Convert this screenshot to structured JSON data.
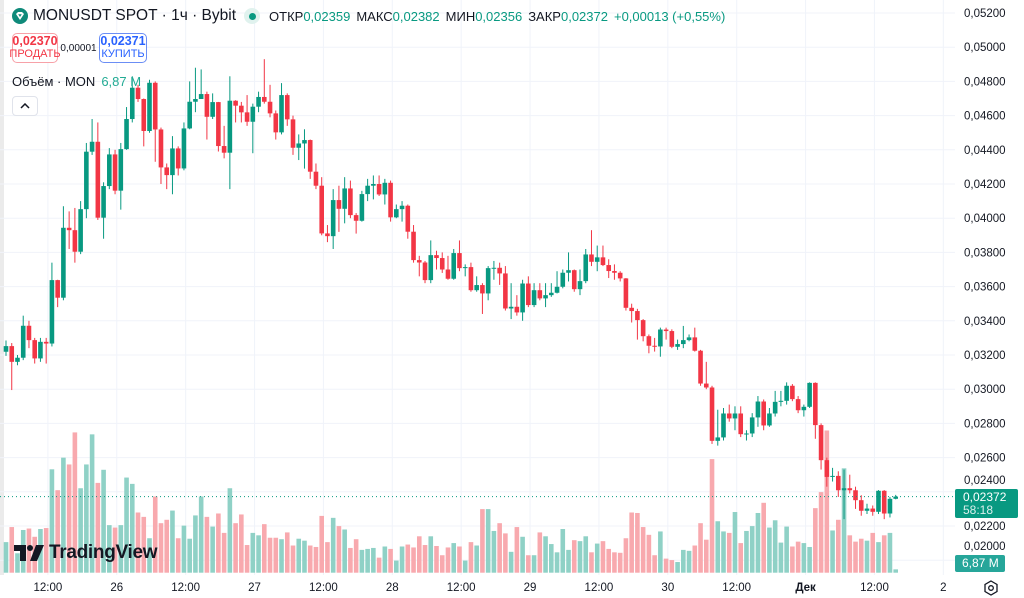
{
  "header": {
    "symbol_title": "MONUSDT SPOT · 1ч · Bybit",
    "open_label": "ОТКР",
    "open": "0,02359",
    "high_label": "МАКС",
    "high": "0,02382",
    "low_label": "МИН",
    "low": "0,02356",
    "close_label": "ЗАКР",
    "close": "0,02372",
    "change": "+0,00013 (+0,55%)"
  },
  "trade": {
    "sell_price": "0,02370",
    "sell_label": "ПРОДАТЬ",
    "spread": "0,00001",
    "buy_price": "0,02371",
    "buy_label": "КУПИТЬ"
  },
  "volume_legend": {
    "label": "Объём · MON",
    "value": "6,87 M"
  },
  "branding": "TradingView",
  "price_tag": {
    "price": "0,02372",
    "countdown": "58:18"
  },
  "volume_tag": "6,87 M",
  "colors": {
    "up": "#089981",
    "down": "#f23645",
    "up_volume": "#8fd1c6",
    "down_volume": "#f8a9ae",
    "grid": "#f0f3fa"
  },
  "icons": {
    "logo": "bybit-diamond-icon",
    "collapse": "chevron-up-icon",
    "settings": "gear-icon"
  },
  "chart_data": {
    "type": "candlestick",
    "title": "MONUSDT SPOT · 1ч · Bybit",
    "grid": true,
    "ylim": [
      0.02,
      0.052
    ],
    "y_ticks": [
      "0,05200",
      "0,05000",
      "0,04800",
      "0,04600",
      "0,04400",
      "0,04200",
      "0,04000",
      "0,03800",
      "0,03600",
      "0,03400",
      "0,03200",
      "0,03000",
      "0,02800",
      "0,02600",
      "0,02400",
      "0,02200",
      "0,02000"
    ],
    "x_ticks": [
      "12:00",
      "26",
      "12:00",
      "27",
      "12:00",
      "28",
      "12:00",
      "29",
      "12:00",
      "30",
      "12:00",
      "Дек",
      "12:00",
      "2"
    ],
    "first_open": 0.03219,
    "close": [
      0.03252,
      0.0316,
      0.03184,
      0.03371,
      0.03287,
      0.0318,
      0.03277,
      0.03267,
      0.03638,
      0.03535,
      0.03944,
      0.0393,
      0.03804,
      0.04053,
      0.04389,
      0.04447,
      0.04003,
      0.04188,
      0.04373,
      0.04161,
      0.04404,
      0.0458,
      0.04763,
      0.04697,
      0.0451,
      0.04792,
      0.04519,
      0.04297,
      0.04252,
      0.04408,
      0.04291,
      0.04525,
      0.04681,
      0.04697,
      0.04726,
      0.04593,
      0.04679,
      0.04422,
      0.04383,
      0.04687,
      0.04658,
      0.04619,
      0.04564,
      0.04652,
      0.04709,
      0.04681,
      0.04613,
      0.04502,
      0.0472,
      0.04578,
      0.04412,
      0.04437,
      0.04457,
      0.04272,
      0.0419,
      0.03911,
      0.03895,
      0.04106,
      0.04055,
      0.04174,
      0.04018,
      0.03985,
      0.04141,
      0.0419,
      0.042,
      0.04139,
      0.04207,
      0.04005,
      0.04053,
      0.04073,
      0.03921,
      0.03755,
      0.03741,
      0.03638,
      0.03784,
      0.03767,
      0.037,
      0.03646,
      0.03796,
      0.03708,
      0.03714,
      0.03579,
      0.03609,
      0.0356,
      0.03708,
      0.0371,
      0.03677,
      0.03472,
      0.03482,
      0.03449,
      0.03618,
      0.03492,
      0.03579,
      0.03531,
      0.0355,
      0.03564,
      0.03599,
      0.03681,
      0.03696,
      0.03585,
      0.03632,
      0.03788,
      0.03745,
      0.03771,
      0.03726,
      0.03691,
      0.03681,
      0.03648,
      0.03476,
      0.03457,
      0.03404,
      0.0331,
      0.03254,
      0.0325,
      0.03349,
      0.0334,
      0.03248,
      0.03264,
      0.03287,
      0.03303,
      0.03225,
      0.03033,
      0.0301,
      0.02698,
      0.02718,
      0.02858,
      0.02829,
      0.02858,
      0.02737,
      0.02741,
      0.02835,
      0.02928,
      0.02788,
      0.02858,
      0.02926,
      0.02932,
      0.0302,
      0.02942,
      0.02877,
      0.02897,
      0.03037,
      0.0279,
      0.02585,
      0.02487,
      0.02493,
      0.02409,
      0.02421,
      0.02409,
      0.02351,
      0.02289,
      0.02302,
      0.02283,
      0.02406,
      0.02273,
      0.02359,
      0.02372
    ],
    "high": [
      0.03285,
      0.0327,
      0.032,
      0.0343,
      0.034,
      0.033,
      0.033,
      0.033,
      0.0374,
      0.0364,
      0.0407,
      0.0404,
      0.0406,
      0.041,
      0.0444,
      0.0458,
      0.0456,
      0.0421,
      0.0441,
      0.044,
      0.0444,
      0.0465,
      0.0483,
      0.0478,
      0.047,
      0.0481,
      0.048,
      0.0453,
      0.0432,
      0.0448,
      0.0442,
      0.0456,
      0.048,
      0.0488,
      0.0487,
      0.0474,
      0.0473,
      0.0468,
      0.0454,
      0.0483,
      0.0469,
      0.0468,
      0.0472,
      0.0467,
      0.0474,
      0.0493,
      0.0478,
      0.0463,
      0.0479,
      0.0473,
      0.046,
      0.0449,
      0.0452,
      0.0446,
      0.0432,
      0.0424,
      0.0396,
      0.0417,
      0.0419,
      0.0424,
      0.0422,
      0.0403,
      0.0416,
      0.0423,
      0.0425,
      0.0425,
      0.0423,
      0.0422,
      0.0408,
      0.041,
      0.0408,
      0.0396,
      0.0378,
      0.0375,
      0.0387,
      0.0381,
      0.038,
      0.0378,
      0.0382,
      0.0387,
      0.0373,
      0.0374,
      0.0366,
      0.0362,
      0.0372,
      0.0375,
      0.0374,
      0.0372,
      0.0362,
      0.0355,
      0.0364,
      0.0366,
      0.0362,
      0.0362,
      0.0362,
      0.0362,
      0.0369,
      0.037,
      0.038,
      0.037,
      0.037,
      0.0382,
      0.0393,
      0.0384,
      0.0384,
      0.0376,
      0.0373,
      0.0369,
      0.0365,
      0.035,
      0.0347,
      0.0341,
      0.0332,
      0.033,
      0.0336,
      0.0336,
      0.0335,
      0.0329,
      0.0337,
      0.0332,
      0.0336,
      0.0323,
      0.0316,
      0.0302,
      0.0288,
      0.0289,
      0.0291,
      0.029,
      0.029,
      0.0276,
      0.0286,
      0.0296,
      0.0294,
      0.0289,
      0.0299,
      0.0299,
      0.0304,
      0.0303,
      0.0296,
      0.0291,
      0.0304,
      0.0304,
      0.028,
      0.026,
      0.0254,
      0.0252,
      0.0253,
      0.025,
      0.0243,
      0.0238,
      0.0233,
      0.0232,
      0.0241,
      0.0241,
      0.0237,
      0.02382
    ],
    "low": [
      0.03195,
      0.02995,
      0.0314,
      0.0317,
      0.0324,
      0.0315,
      0.0316,
      0.0315,
      0.0325,
      0.0348,
      0.0352,
      0.0382,
      0.0374,
      0.0379,
      0.04,
      0.0437,
      0.0399,
      0.0388,
      0.0417,
      0.0414,
      0.0405,
      0.044,
      0.0456,
      0.0468,
      0.0442,
      0.045,
      0.0433,
      0.042,
      0.0417,
      0.0414,
      0.0425,
      0.0428,
      0.0452,
      0.0462,
      0.047,
      0.0446,
      0.0458,
      0.0439,
      0.0435,
      0.0417,
      0.0456,
      0.0456,
      0.0454,
      0.0438,
      0.0462,
      0.0467,
      0.0459,
      0.0446,
      0.0449,
      0.0454,
      0.0437,
      0.0434,
      0.0429,
      0.0423,
      0.0417,
      0.039,
      0.0386,
      0.0382,
      0.0392,
      0.0397,
      0.04,
      0.0391,
      0.0398,
      0.041,
      0.0411,
      0.0413,
      0.0408,
      0.0398,
      0.04,
      0.0398,
      0.0388,
      0.0374,
      0.0366,
      0.0362,
      0.0362,
      0.037,
      0.0368,
      0.0364,
      0.0364,
      0.0369,
      0.0366,
      0.0357,
      0.0357,
      0.0344,
      0.0352,
      0.0364,
      0.0361,
      0.0346,
      0.0341,
      0.0343,
      0.034,
      0.0348,
      0.0348,
      0.0352,
      0.0348,
      0.0354,
      0.0356,
      0.0359,
      0.0363,
      0.0357,
      0.0355,
      0.0362,
      0.0372,
      0.0369,
      0.0372,
      0.0365,
      0.0364,
      0.0363,
      0.0346,
      0.0339,
      0.0329,
      0.0328,
      0.0321,
      0.0322,
      0.0319,
      0.0329,
      0.0324,
      0.0323,
      0.0324,
      0.0328,
      0.0322,
      0.0302,
      0.03,
      0.0268,
      0.0267,
      0.027,
      0.0281,
      0.0276,
      0.0272,
      0.027,
      0.0272,
      0.0278,
      0.0276,
      0.0278,
      0.0284,
      0.029,
      0.0291,
      0.0293,
      0.0286,
      0.0284,
      0.0289,
      0.0271,
      0.0253,
      0.0243,
      0.0246,
      0.0237,
      0.0224,
      0.0239,
      0.023,
      0.0226,
      0.0227,
      0.0226,
      0.0227,
      0.0224,
      0.0225,
      0.02356
    ],
    "volume_unit": "M",
    "volume": [
      63,
      94,
      40,
      88,
      91,
      74,
      90,
      92,
      213,
      170,
      237,
      223,
      289,
      174,
      223,
      285,
      185,
      212,
      98,
      93,
      98,
      196,
      183,
      124,
      115,
      71,
      157,
      102,
      109,
      128,
      71,
      97,
      70,
      118,
      157,
      115,
      95,
      122,
      82,
      174,
      102,
      120,
      57,
      82,
      77,
      100,
      72,
      72,
      69,
      83,
      56,
      70,
      66,
      56,
      53,
      117,
      63,
      113,
      96,
      89,
      51,
      69,
      47,
      49,
      51,
      31,
      54,
      49,
      25,
      54,
      58,
      52,
      75,
      57,
      75,
      55,
      36,
      52,
      61,
      54,
      25,
      63,
      56,
      131,
      131,
      86,
      102,
      81,
      43,
      94,
      74,
      36,
      36,
      83,
      75,
      59,
      42,
      90,
      47,
      67,
      65,
      75,
      42,
      60,
      65,
      49,
      42,
      41,
      71,
      124,
      123,
      94,
      78,
      36,
      85,
      29,
      26,
      22,
      47,
      45,
      56,
      102,
      68,
      234,
      106,
      85,
      82,
      125,
      61,
      86,
      96,
      123,
      144,
      93,
      108,
      62,
      95,
      54,
      64,
      61,
      53,
      133,
      166,
      293,
      87,
      109,
      215,
      77,
      64,
      70,
      66,
      82,
      63,
      77,
      82,
      6.87
    ]
  }
}
